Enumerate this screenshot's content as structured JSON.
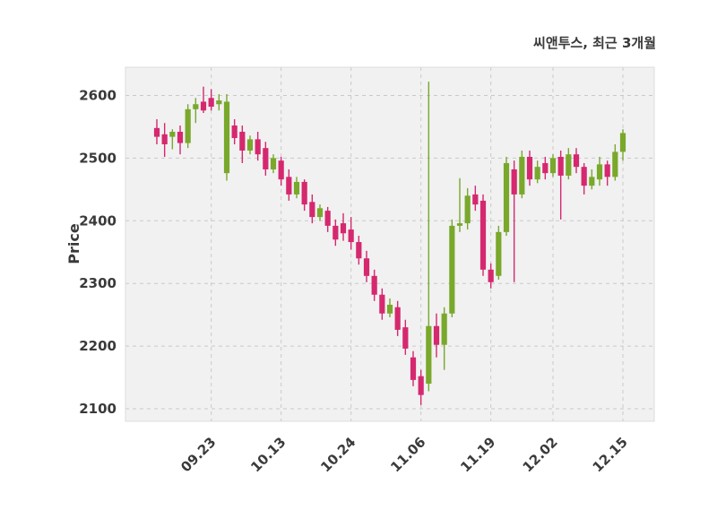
{
  "header": {
    "title": "씨앤투스, 최근 3개월"
  },
  "chart_data": {
    "type": "candlestick",
    "title": "씨앤투스, 최근 3개월",
    "ylabel": "Price",
    "xlabel": "",
    "ylim": [
      2080,
      2645
    ],
    "yticks": [
      2100,
      2200,
      2300,
      2400,
      2500,
      2600
    ],
    "xticks": [
      {
        "label": "09.23",
        "index": 7
      },
      {
        "label": "10.13",
        "index": 16
      },
      {
        "label": "10.24",
        "index": 25
      },
      {
        "label": "11.06",
        "index": 34
      },
      {
        "label": "11.19",
        "index": 43
      },
      {
        "label": "12.02",
        "index": 51
      },
      {
        "label": "12.15",
        "index": 60
      }
    ],
    "grid": true,
    "legend_position": "none",
    "colors": {
      "up": "#79a82b",
      "down": "#d5286f",
      "grid": "#c9c9c9",
      "plot_bg": "#f1f1f2",
      "plot_border": "#dcdcdc",
      "text": "#3a3a3a"
    },
    "candles_format": "[open, high, low, close]",
    "candles": [
      [
        2548,
        2562,
        2522,
        2534
      ],
      [
        2538,
        2556,
        2502,
        2522
      ],
      [
        2534,
        2546,
        2514,
        2542
      ],
      [
        2542,
        2552,
        2506,
        2524
      ],
      [
        2524,
        2586,
        2516,
        2578
      ],
      [
        2578,
        2596,
        2556,
        2586
      ],
      [
        2590,
        2614,
        2572,
        2576
      ],
      [
        2596,
        2610,
        2576,
        2582
      ],
      [
        2586,
        2602,
        2576,
        2592
      ],
      [
        2476,
        2602,
        2464,
        2590
      ],
      [
        2552,
        2562,
        2522,
        2532
      ],
      [
        2542,
        2552,
        2492,
        2512
      ],
      [
        2512,
        2536,
        2506,
        2530
      ],
      [
        2530,
        2542,
        2496,
        2506
      ],
      [
        2516,
        2526,
        2472,
        2482
      ],
      [
        2482,
        2506,
        2476,
        2500
      ],
      [
        2496,
        2502,
        2456,
        2466
      ],
      [
        2470,
        2482,
        2432,
        2442
      ],
      [
        2442,
        2470,
        2436,
        2462
      ],
      [
        2462,
        2466,
        2416,
        2426
      ],
      [
        2430,
        2442,
        2396,
        2406
      ],
      [
        2406,
        2426,
        2400,
        2420
      ],
      [
        2416,
        2422,
        2382,
        2392
      ],
      [
        2392,
        2402,
        2360,
        2370
      ],
      [
        2396,
        2412,
        2368,
        2380
      ],
      [
        2386,
        2406,
        2354,
        2366
      ],
      [
        2366,
        2376,
        2330,
        2340
      ],
      [
        2340,
        2352,
        2302,
        2312
      ],
      [
        2312,
        2322,
        2272,
        2282
      ],
      [
        2282,
        2292,
        2242,
        2252
      ],
      [
        2252,
        2276,
        2246,
        2266
      ],
      [
        2262,
        2272,
        2216,
        2226
      ],
      [
        2230,
        2242,
        2186,
        2196
      ],
      [
        2182,
        2192,
        2136,
        2146
      ],
      [
        2152,
        2162,
        2106,
        2122
      ],
      [
        2140,
        2622,
        2128,
        2232
      ],
      [
        2232,
        2252,
        2182,
        2202
      ],
      [
        2202,
        2262,
        2162,
        2252
      ],
      [
        2252,
        2402,
        2246,
        2392
      ],
      [
        2392,
        2468,
        2382,
        2396
      ],
      [
        2396,
        2452,
        2386,
        2440
      ],
      [
        2442,
        2456,
        2416,
        2426
      ],
      [
        2432,
        2442,
        2312,
        2322
      ],
      [
        2322,
        2332,
        2292,
        2302
      ],
      [
        2312,
        2392,
        2306,
        2382
      ],
      [
        2382,
        2502,
        2376,
        2492
      ],
      [
        2482,
        2496,
        2302,
        2442
      ],
      [
        2442,
        2512,
        2436,
        2502
      ],
      [
        2502,
        2512,
        2456,
        2466
      ],
      [
        2466,
        2496,
        2460,
        2486
      ],
      [
        2492,
        2502,
        2466,
        2476
      ],
      [
        2476,
        2506,
        2470,
        2500
      ],
      [
        2502,
        2512,
        2402,
        2472
      ],
      [
        2472,
        2516,
        2466,
        2506
      ],
      [
        2506,
        2516,
        2476,
        2486
      ],
      [
        2486,
        2492,
        2442,
        2456
      ],
      [
        2456,
        2482,
        2450,
        2470
      ],
      [
        2466,
        2502,
        2456,
        2490
      ],
      [
        2490,
        2496,
        2456,
        2470
      ],
      [
        2470,
        2522,
        2464,
        2510
      ],
      [
        2510,
        2546,
        2496,
        2540
      ]
    ]
  }
}
